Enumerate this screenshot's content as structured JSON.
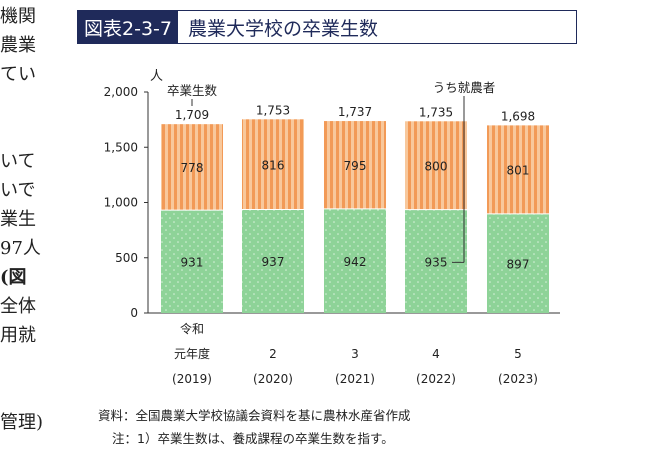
{
  "left_text": [
    "機関",
    "農業",
    "てい",
    "いて",
    "いで",
    "業生",
    "97人",
    "(図",
    "全体",
    "用就",
    "管理)"
  ],
  "figure": {
    "number": "図表2-3-7",
    "title": "農業大学校の卒業生数"
  },
  "chart_data": {
    "type": "bar",
    "stacked": true,
    "y_unit": "人",
    "ylim": [
      0,
      2000
    ],
    "yticks": [
      0,
      500,
      1000,
      1500,
      2000
    ],
    "yticks_labels": [
      "0",
      "500",
      "1,000",
      "1,500",
      "2,000"
    ],
    "categories": [
      {
        "line1": "令和",
        "line2": "元年度",
        "line3": "(2019)"
      },
      {
        "line1": "",
        "line2": "2",
        "line3": "(2020)"
      },
      {
        "line1": "",
        "line2": "3",
        "line3": "(2021)"
      },
      {
        "line1": "",
        "line2": "4",
        "line3": "(2022)"
      },
      {
        "line1": "",
        "line2": "5",
        "line3": "(2023)"
      }
    ],
    "series": [
      {
        "name": "うち就農者",
        "values": [
          931,
          937,
          942,
          935,
          897
        ],
        "color": "#8ed398"
      },
      {
        "name": "",
        "values": [
          778,
          816,
          795,
          800,
          801
        ],
        "color": "#f4a86a"
      }
    ],
    "totals": [
      1709,
      1753,
      1737,
      1735,
      1698
    ],
    "totals_labels": [
      "1,709",
      "1,753",
      "1,737",
      "1,735",
      "1,698"
    ],
    "total_label": "卒業生数",
    "farmers_label": "うち就農者"
  },
  "notes": {
    "source": "資料：全国農業大学校協議会資料を基に農林水産省作成",
    "note": "注：1）卒業生数は、養成課程の卒業生数を指す。"
  }
}
